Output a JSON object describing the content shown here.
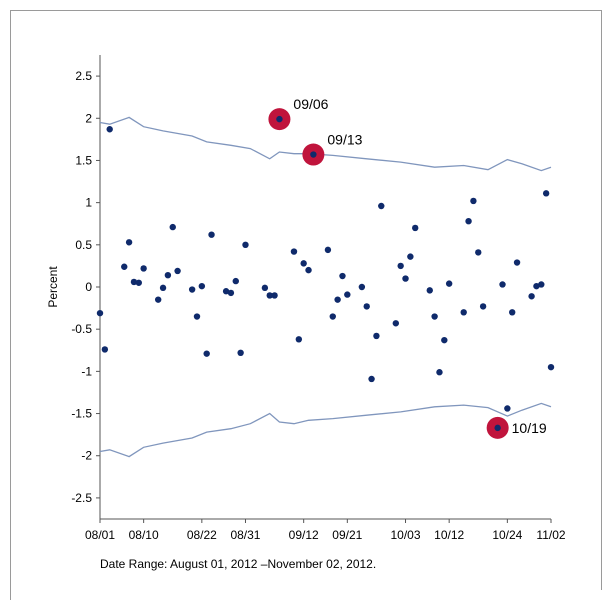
{
  "chart_data": {
    "type": "scatter",
    "title": "",
    "xlabel": "",
    "ylabel": "Percent",
    "ylim": [
      -2.75,
      2.75
    ],
    "yticks": [
      2.5,
      2,
      1.5,
      1,
      0.5,
      0,
      -0.5,
      -1,
      -1.5,
      -2,
      -2.5
    ],
    "ytick_labels": [
      "2.5",
      "2",
      "1.5",
      "1",
      "0.5",
      "0",
      "-0.5",
      "-1",
      "-1.5",
      "-2",
      "-2.5"
    ],
    "xlim": [
      "2012-08-01",
      "2012-11-02"
    ],
    "xticks": [
      "2012-08-01",
      "2012-08-10",
      "2012-08-22",
      "2012-08-31",
      "2012-09-12",
      "2012-09-21",
      "2012-10-03",
      "2012-10-12",
      "2012-10-24",
      "2012-11-02"
    ],
    "xtick_labels": [
      "08/01",
      "08/10",
      "08/22",
      "08/31",
      "09/12",
      "09/21",
      "10/03",
      "10/12",
      "10/24",
      "11/02"
    ],
    "points": [
      [
        "2012-08-01",
        -0.31
      ],
      [
        "2012-08-02",
        -0.74
      ],
      [
        "2012-08-03",
        1.87
      ],
      [
        "2012-08-06",
        0.24
      ],
      [
        "2012-08-07",
        0.53
      ],
      [
        "2012-08-08",
        0.06
      ],
      [
        "2012-08-09",
        0.05
      ],
      [
        "2012-08-10",
        0.22
      ],
      [
        "2012-08-13",
        -0.15
      ],
      [
        "2012-08-14",
        -0.01
      ],
      [
        "2012-08-15",
        0.14
      ],
      [
        "2012-08-16",
        0.71
      ],
      [
        "2012-08-17",
        0.19
      ],
      [
        "2012-08-20",
        -0.03
      ],
      [
        "2012-08-21",
        -0.35
      ],
      [
        "2012-08-22",
        0.01
      ],
      [
        "2012-08-23",
        -0.79
      ],
      [
        "2012-08-24",
        0.62
      ],
      [
        "2012-08-27",
        -0.05
      ],
      [
        "2012-08-28",
        -0.07
      ],
      [
        "2012-08-29",
        0.07
      ],
      [
        "2012-08-30",
        -0.78
      ],
      [
        "2012-08-31",
        0.5
      ],
      [
        "2012-09-04",
        -0.01
      ],
      [
        "2012-09-05",
        -0.1
      ],
      [
        "2012-09-06",
        -0.1
      ],
      [
        "2012-09-07",
        1.99
      ],
      [
        "2012-09-10",
        0.42
      ],
      [
        "2012-09-11",
        -0.62
      ],
      [
        "2012-09-12",
        0.28
      ],
      [
        "2012-09-13",
        0.2
      ],
      [
        "2012-09-14",
        1.57
      ],
      [
        "2012-09-17",
        0.44
      ],
      [
        "2012-09-18",
        -0.35
      ],
      [
        "2012-09-19",
        -0.15
      ],
      [
        "2012-09-20",
        0.13
      ],
      [
        "2012-09-21",
        -0.09
      ],
      [
        "2012-09-24",
        0.0
      ],
      [
        "2012-09-25",
        -0.23
      ],
      [
        "2012-09-26",
        -1.09
      ],
      [
        "2012-09-27",
        -0.58
      ],
      [
        "2012-09-28",
        0.96
      ],
      [
        "2012-10-01",
        -0.43
      ],
      [
        "2012-10-02",
        0.25
      ],
      [
        "2012-10-03",
        0.1
      ],
      [
        "2012-10-04",
        0.36
      ],
      [
        "2012-10-05",
        0.7
      ],
      [
        "2012-10-08",
        -0.04
      ],
      [
        "2012-10-09",
        -0.35
      ],
      [
        "2012-10-10",
        -1.01
      ],
      [
        "2012-10-11",
        -0.63
      ],
      [
        "2012-10-12",
        0.04
      ],
      [
        "2012-10-15",
        -0.3
      ],
      [
        "2012-10-16",
        0.78
      ],
      [
        "2012-10-17",
        1.02
      ],
      [
        "2012-10-18",
        0.41
      ],
      [
        "2012-10-19",
        -0.23
      ],
      [
        "2012-10-22",
        -1.67
      ],
      [
        "2012-10-23",
        0.03
      ],
      [
        "2012-10-24",
        -1.44
      ],
      [
        "2012-10-25",
        -0.3
      ],
      [
        "2012-10-26",
        0.29
      ],
      [
        "2012-10-29",
        -0.11
      ],
      [
        "2012-10-30",
        0.01
      ],
      [
        "2012-10-31",
        0.03
      ],
      [
        "2012-11-01",
        1.11
      ],
      [
        "2012-11-02",
        -0.95
      ]
    ],
    "upper_band": [
      [
        "2012-08-01",
        1.95
      ],
      [
        "2012-08-03",
        1.93
      ],
      [
        "2012-08-07",
        2.01
      ],
      [
        "2012-08-10",
        1.9
      ],
      [
        "2012-08-14",
        1.85
      ],
      [
        "2012-08-20",
        1.79
      ],
      [
        "2012-08-23",
        1.72
      ],
      [
        "2012-08-28",
        1.68
      ],
      [
        "2012-09-01",
        1.64
      ],
      [
        "2012-09-05",
        1.52
      ],
      [
        "2012-09-07",
        1.6
      ],
      [
        "2012-09-10",
        1.58
      ],
      [
        "2012-09-13",
        1.58
      ],
      [
        "2012-09-18",
        1.56
      ],
      [
        "2012-09-25",
        1.52
      ],
      [
        "2012-10-02",
        1.48
      ],
      [
        "2012-10-09",
        1.42
      ],
      [
        "2012-10-15",
        1.44
      ],
      [
        "2012-10-20",
        1.39
      ],
      [
        "2012-10-24",
        1.51
      ],
      [
        "2012-10-27",
        1.46
      ],
      [
        "2012-10-31",
        1.38
      ],
      [
        "2012-11-02",
        1.42
      ]
    ],
    "lower_band": [
      [
        "2012-08-01",
        -1.95
      ],
      [
        "2012-08-03",
        -1.93
      ],
      [
        "2012-08-07",
        -2.01
      ],
      [
        "2012-08-10",
        -1.9
      ],
      [
        "2012-08-14",
        -1.85
      ],
      [
        "2012-08-20",
        -1.79
      ],
      [
        "2012-08-23",
        -1.72
      ],
      [
        "2012-08-28",
        -1.68
      ],
      [
        "2012-09-01",
        -1.62
      ],
      [
        "2012-09-05",
        -1.5
      ],
      [
        "2012-09-07",
        -1.6
      ],
      [
        "2012-09-10",
        -1.62
      ],
      [
        "2012-09-13",
        -1.58
      ],
      [
        "2012-09-18",
        -1.56
      ],
      [
        "2012-09-25",
        -1.52
      ],
      [
        "2012-10-02",
        -1.48
      ],
      [
        "2012-10-09",
        -1.42
      ],
      [
        "2012-10-15",
        -1.4
      ],
      [
        "2012-10-20",
        -1.43
      ],
      [
        "2012-10-24",
        -1.53
      ],
      [
        "2012-10-27",
        -1.46
      ],
      [
        "2012-10-31",
        -1.38
      ],
      [
        "2012-11-02",
        -1.42
      ]
    ],
    "highlights": [
      {
        "date": "2012-09-07",
        "value": 1.99,
        "label": "09/06"
      },
      {
        "date": "2012-09-14",
        "value": 1.57,
        "label": "09/13"
      },
      {
        "date": "2012-10-22",
        "value": -1.67,
        "label": "10/19"
      }
    ],
    "grid": false,
    "colors": {
      "points": "#0f2a6b",
      "band": "#8096bd",
      "highlight": "#c0143c"
    }
  },
  "footer": {
    "date_range": "Date Range: August 01, 2012  –November 02, 2012."
  }
}
